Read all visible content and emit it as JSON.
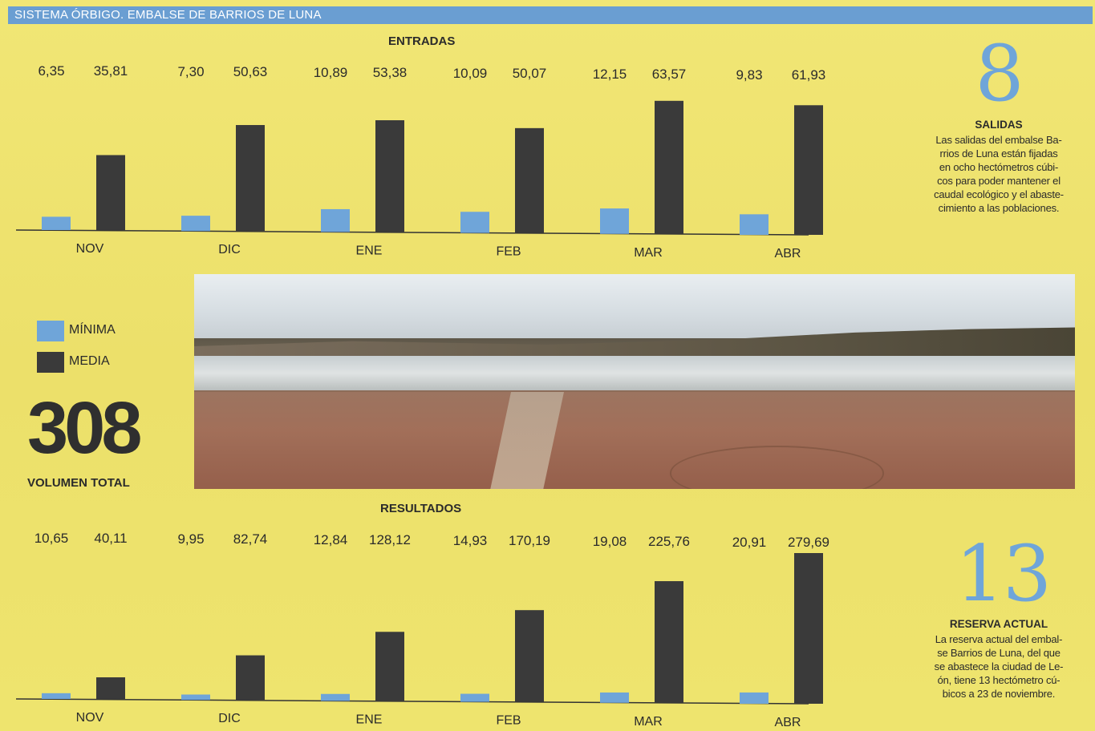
{
  "header": {
    "title": "SISTEMA ÓRBIGO. EMBALSE DE BARRIOS DE LUNA"
  },
  "colors": {
    "minima": "#6fa5d9",
    "media": "#3a3a3a",
    "header_bar": "#6a9ed2",
    "background": "#efe36a"
  },
  "legend": {
    "items": [
      {
        "label": "MÍNIMA",
        "color": "#6fa5d9"
      },
      {
        "label": "MEDIA",
        "color": "#3a3a3a"
      }
    ]
  },
  "total": {
    "value": "308",
    "label": "VOLUMEN TOTAL"
  },
  "salidas": {
    "number": "8",
    "heading": "SALIDAS",
    "lines": [
      "Las salidas del embalse Ba-",
      "rrios de Luna están fijadas",
      "en ocho hectómetros cúbi-",
      "cos para poder mantener el",
      "caudal ecológico y el abaste-",
      "cimiento a las poblaciones."
    ]
  },
  "reserva": {
    "number": "13",
    "heading": "RESERVA ACTUAL",
    "lines": [
      "La reserva actual del embal-",
      "se Barrios de Luna, del que",
      "se abastece la ciudad de Le-",
      "ón, tiene 13 hectómetro cú-",
      "bicos a 23 de noviembre."
    ]
  },
  "chart_data": [
    {
      "type": "bar",
      "title": "ENTRADAS",
      "categories": [
        "NOV",
        "DIC",
        "ENE",
        "FEB",
        "MAR",
        "ABR"
      ],
      "series": [
        {
          "name": "MÍNIMA",
          "values": [
            6.35,
            7.3,
            10.89,
            10.09,
            12.15,
            9.83
          ],
          "labels": [
            "6,35",
            "7,30",
            "10,89",
            "10,09",
            "12,15",
            "9,83"
          ]
        },
        {
          "name": "MEDIA",
          "values": [
            35.81,
            50.63,
            53.38,
            50.07,
            63.57,
            61.93
          ],
          "labels": [
            "35,81",
            "50,63",
            "53,38",
            "50,07",
            "63,57",
            "61,93"
          ]
        }
      ]
    },
    {
      "type": "bar",
      "title": "RESULTADOS",
      "categories": [
        "NOV",
        "DIC",
        "ENE",
        "FEB",
        "MAR",
        "ABR"
      ],
      "series": [
        {
          "name": "MÍNIMA",
          "values": [
            10.65,
            9.95,
            12.84,
            14.93,
            19.08,
            20.91
          ],
          "labels": [
            "10,65",
            "9,95",
            "12,84",
            "14,93",
            "19,08",
            "20,91"
          ]
        },
        {
          "name": "MEDIA",
          "values": [
            40.11,
            82.74,
            128.12,
            170.19,
            225.76,
            279.69
          ],
          "labels": [
            "40,11",
            "82,74",
            "128,12",
            "170,19",
            "225,76",
            "279,69"
          ]
        }
      ]
    }
  ]
}
